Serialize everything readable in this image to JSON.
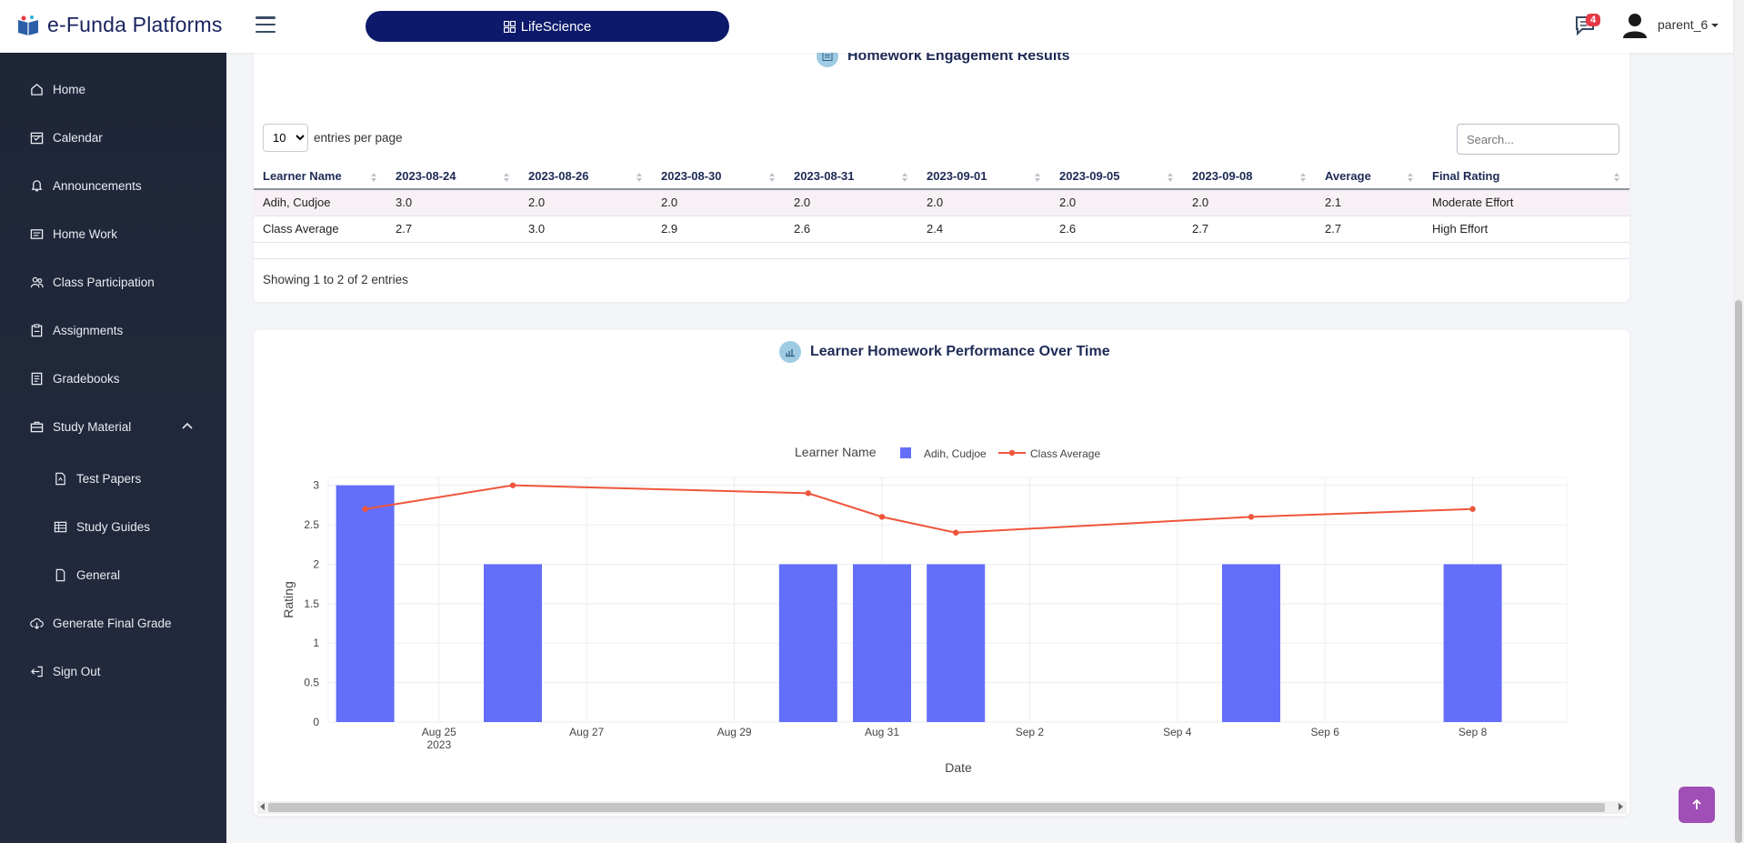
{
  "app": {
    "brand": "e-Funda Platforms",
    "subject": "LifeScience",
    "message_count": "4",
    "user": "parent_6"
  },
  "sidebar": {
    "items": [
      {
        "label": "Home",
        "icon": "home-icon"
      },
      {
        "label": "Calendar",
        "icon": "calendar-icon"
      },
      {
        "label": "Announcements",
        "icon": "bell-icon"
      },
      {
        "label": "Home Work",
        "icon": "homework-icon"
      },
      {
        "label": "Class Participation",
        "icon": "users-icon"
      },
      {
        "label": "Assignments",
        "icon": "clipboard-icon"
      },
      {
        "label": "Gradebooks",
        "icon": "book-icon"
      },
      {
        "label": "Study Material",
        "icon": "briefcase-icon"
      },
      {
        "label": "Test Papers",
        "icon": "file-icon"
      },
      {
        "label": "Study Guides",
        "icon": "table-icon"
      },
      {
        "label": "General",
        "icon": "page-icon"
      },
      {
        "label": "Generate Final Grade",
        "icon": "cloud-download-icon"
      },
      {
        "label": "Sign Out",
        "icon": "sign-out-icon"
      }
    ]
  },
  "engagement": {
    "title": "Homework Engagement Results",
    "entries_value": "10",
    "entries_label": "entries per page",
    "search_placeholder": "Search...",
    "columns": [
      "Learner Name",
      "2023-08-24",
      "2023-08-26",
      "2023-08-30",
      "2023-08-31",
      "2023-09-01",
      "2023-09-05",
      "2023-09-08",
      "Average",
      "Final Rating"
    ],
    "rows": [
      [
        "Adih, Cudjoe",
        "3.0",
        "2.0",
        "2.0",
        "2.0",
        "2.0",
        "2.0",
        "2.0",
        "2.1",
        "Moderate Effort"
      ],
      [
        "Class Average",
        "2.7",
        "3.0",
        "2.9",
        "2.6",
        "2.4",
        "2.6",
        "2.7",
        "2.7",
        "High Effort"
      ]
    ],
    "showing": "Showing 1 to 2 of 2 entries"
  },
  "performance": {
    "title": "Learner Homework Performance Over Time"
  },
  "chart_data": {
    "type": "bar",
    "xlabel": "Date",
    "ylabel": "Rating",
    "legend_title": "Learner Name",
    "legend_position": "top-center",
    "ylim": [
      0,
      3.1
    ],
    "yticks": [
      "0",
      "0.5",
      "1",
      "1.5",
      "2",
      "2.5",
      "3"
    ],
    "xticks": [
      "Aug 25",
      "Aug 27",
      "Aug 29",
      "Aug 31",
      "Sep 2",
      "Sep 4",
      "Sep 6",
      "Sep 8"
    ],
    "xtick_year": "2023",
    "grid": true,
    "x": [
      "2023-08-24",
      "2023-08-26",
      "2023-08-30",
      "2023-08-31",
      "2023-09-01",
      "2023-09-05",
      "2023-09-08"
    ],
    "series": [
      {
        "name": "Adih, Cudjoe",
        "kind": "bar",
        "color": "#636efa",
        "values": [
          3.0,
          2.0,
          2.0,
          2.0,
          2.0,
          2.0,
          2.0
        ]
      },
      {
        "name": "Class Average",
        "kind": "line",
        "color": "#ef553b",
        "values": [
          2.7,
          3.0,
          2.9,
          2.6,
          2.4,
          2.6,
          2.7
        ]
      }
    ]
  }
}
